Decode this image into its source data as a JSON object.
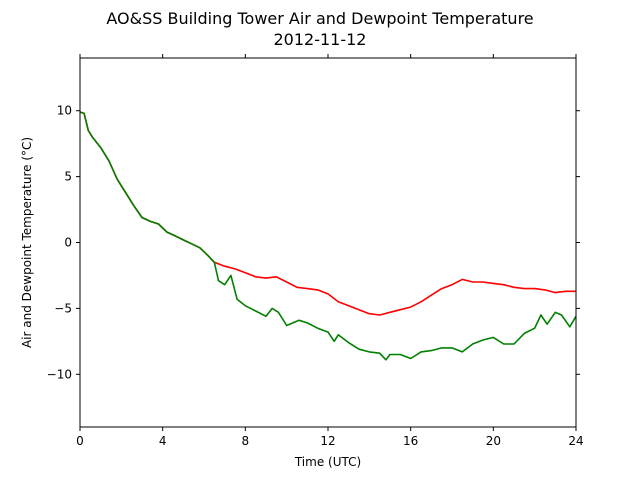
{
  "chart_data": {
    "type": "line",
    "title": "AO&SS Building Tower Air and Dewpoint Temperature",
    "subtitle": "2012-11-12",
    "xlabel": "Time (UTC)",
    "ylabel": "Air and Dewpoint Temperature (°C)",
    "xlim": [
      0,
      24
    ],
    "ylim": [
      -14,
      14
    ],
    "xticks": [
      0,
      4,
      8,
      12,
      16,
      20,
      24
    ],
    "yticks": [
      -10,
      -5,
      0,
      5,
      10
    ],
    "grid": false,
    "legend": "none",
    "series": [
      {
        "color": "#ff0000",
        "x": [
          0,
          0.2,
          0.4,
          0.6,
          1.0,
          1.4,
          1.8,
          2.2,
          2.6,
          3.0,
          3.4,
          3.8,
          4.2,
          4.6,
          5.0,
          5.4,
          5.8,
          6.2,
          6.5,
          7.0,
          7.5,
          8.0,
          8.5,
          9.0,
          9.5,
          10.0,
          10.5,
          11.0,
          11.5,
          12.0,
          12.5,
          13.0,
          13.5,
          14.0,
          14.5,
          15.0,
          15.5,
          16.0,
          16.5,
          17.0,
          17.5,
          18.0,
          18.5,
          19.0,
          19.5,
          20.0,
          20.5,
          21.0,
          21.5,
          22.0,
          22.5,
          23.0,
          23.5,
          24.0
        ],
        "y": [
          9.9,
          9.8,
          8.5,
          8.0,
          7.2,
          6.2,
          4.8,
          3.8,
          2.8,
          1.9,
          1.6,
          1.4,
          0.8,
          0.5,
          0.2,
          -0.1,
          -0.4,
          -1.0,
          -1.5,
          -1.8,
          -2.0,
          -2.3,
          -2.6,
          -2.7,
          -2.6,
          -3.0,
          -3.4,
          -3.5,
          -3.6,
          -3.9,
          -4.5,
          -4.8,
          -5.1,
          -5.4,
          -5.5,
          -5.3,
          -5.1,
          -4.9,
          -4.5,
          -4.0,
          -3.5,
          -3.2,
          -2.8,
          -3.0,
          -3.0,
          -3.1,
          -3.2,
          -3.4,
          -3.5,
          -3.5,
          -3.6,
          -3.8,
          -3.7,
          -3.7
        ]
      },
      {
        "color": "#008000",
        "x": [
          0,
          0.2,
          0.4,
          0.6,
          1.0,
          1.4,
          1.8,
          2.2,
          2.6,
          3.0,
          3.4,
          3.8,
          4.2,
          4.6,
          5.0,
          5.4,
          5.8,
          6.2,
          6.5,
          6.7,
          7.0,
          7.3,
          7.6,
          8.0,
          8.5,
          9.0,
          9.3,
          9.6,
          10.0,
          10.3,
          10.6,
          11.0,
          11.5,
          12.0,
          12.3,
          12.5,
          13.0,
          13.5,
          14.0,
          14.5,
          14.8,
          15.0,
          15.5,
          16.0,
          16.5,
          17.0,
          17.5,
          18.0,
          18.5,
          19.0,
          19.5,
          20.0,
          20.5,
          21.0,
          21.5,
          22.0,
          22.3,
          22.6,
          23.0,
          23.3,
          23.7,
          24.0
        ],
        "y": [
          9.9,
          9.8,
          8.5,
          8.0,
          7.2,
          6.2,
          4.8,
          3.8,
          2.8,
          1.9,
          1.6,
          1.4,
          0.8,
          0.5,
          0.2,
          -0.1,
          -0.4,
          -1.0,
          -1.5,
          -2.9,
          -3.2,
          -2.5,
          -4.3,
          -4.8,
          -5.2,
          -5.6,
          -5.0,
          -5.3,
          -6.3,
          -6.1,
          -5.9,
          -6.1,
          -6.5,
          -6.8,
          -7.5,
          -7.0,
          -7.6,
          -8.1,
          -8.3,
          -8.4,
          -8.9,
          -8.5,
          -8.5,
          -8.8,
          -8.3,
          -8.2,
          -8.0,
          -8.0,
          -8.3,
          -7.7,
          -7.4,
          -7.2,
          -7.7,
          -7.7,
          -6.9,
          -6.5,
          -5.5,
          -6.2,
          -5.3,
          -5.5,
          -6.4,
          -5.6
        ]
      }
    ]
  }
}
